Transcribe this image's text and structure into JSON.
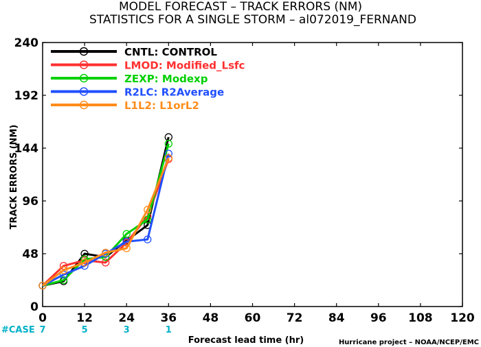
{
  "chart_data": {
    "type": "line",
    "title": "MODEL FORECAST – TRACK ERRORS (NM)",
    "subtitle": "STATISTICS FOR A SINGLE STORM – al072019_FERNAND",
    "xlabel": "Forecast lead time (hr)",
    "ylabel": "TRACK ERRORS (NM)",
    "xlim": [
      0,
      120
    ],
    "ylim": [
      0,
      240
    ],
    "xticks": [
      "0",
      "12",
      "24",
      "36",
      "48",
      "60",
      "72",
      "84",
      "96",
      "108",
      "120"
    ],
    "yticks": [
      "0",
      "48",
      "96",
      "144",
      "192",
      "240"
    ],
    "legend_position": "top-left",
    "case_label": "#CASE",
    "cases": [
      {
        "x": 0,
        "label": "7"
      },
      {
        "x": 12,
        "label": "5"
      },
      {
        "x": 24,
        "label": "3"
      },
      {
        "x": 36,
        "label": "1"
      }
    ],
    "credit": "Hurricane project – NOAA/NCEP/EMC",
    "series": [
      {
        "name": "CNTL: CONTROL",
        "color": "#000000",
        "x": [
          0,
          6,
          12,
          18,
          24,
          30,
          36
        ],
        "y": [
          19,
          23,
          48,
          45,
          60,
          74,
          154
        ]
      },
      {
        "name": "LMOD: Modified_Lsfc",
        "color": "#ff3030",
        "x": [
          0,
          6,
          12,
          18,
          24,
          30,
          36
        ],
        "y": [
          19,
          37,
          42,
          40,
          58,
          82,
          134
        ]
      },
      {
        "name": "ZEXP: Modexp",
        "color": "#00d000",
        "x": [
          0,
          6,
          12,
          18,
          24,
          30,
          36
        ],
        "y": [
          19,
          24,
          43,
          45,
          66,
          79,
          148
        ]
      },
      {
        "name": "R2LC: R2Average",
        "color": "#2050ff",
        "x": [
          0,
          6,
          12,
          18,
          24,
          30,
          36
        ],
        "y": [
          19,
          29,
          37,
          48,
          59,
          61,
          139
        ]
      },
      {
        "name": "L1L2: L1orL2",
        "color": "#ff8c1a",
        "x": [
          0,
          6,
          12,
          18,
          24,
          30,
          36
        ],
        "y": [
          19,
          33,
          40,
          49,
          53,
          88,
          135
        ]
      }
    ]
  }
}
